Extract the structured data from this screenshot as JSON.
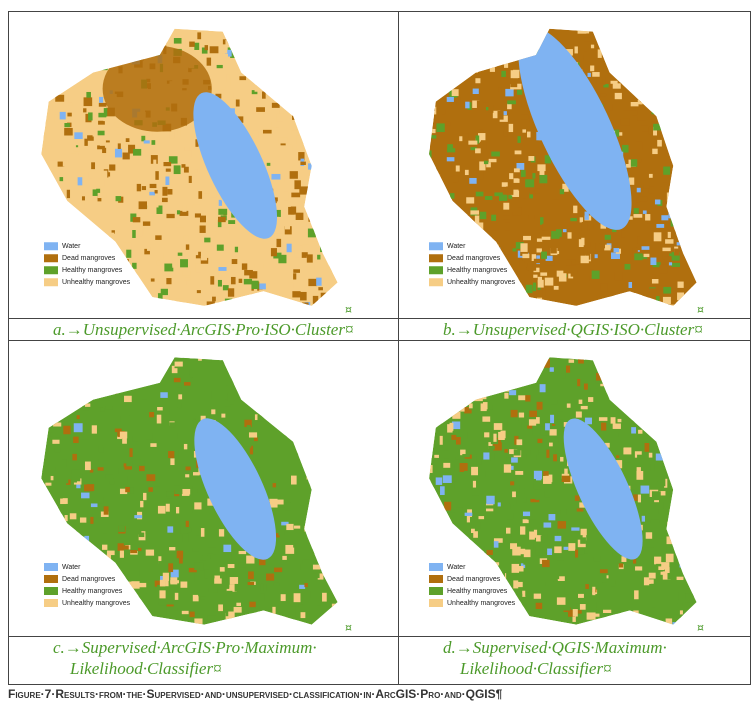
{
  "panels": [
    {
      "caption": [
        "a.→Unsupervised·ArcGIS·Pro·ISO·Cluster¤"
      ],
      "legend": [
        "Water",
        "Dead mangroves",
        "Healthy mangroves",
        "Unhealthy mangroves"
      ],
      "cell_mark": "¤"
    },
    {
      "caption": [
        "b.→Unsupervised·QGIS·ISO·Cluster¤"
      ],
      "legend": [
        "Water",
        "Dead mangroves",
        "Healthy mangroves",
        "Unhealthy mangroves"
      ],
      "cell_mark": "¤"
    },
    {
      "caption": [
        "c.→Supervised·ArcGIS·Pro·Maximum·",
        "Likelihood·Classifier¤"
      ],
      "legend": [
        "Water",
        "Dead mangroves",
        "Healthy mangroves",
        "Unhealthy mangroves"
      ],
      "cell_mark": "¤"
    },
    {
      "caption": [
        "d.→Supervised·QGIS·Maximum·",
        "Likelihood·Classifier¤"
      ],
      "legend": [
        "Water",
        "Dead mangroves",
        "Healthy mangroves",
        "Unhealthy mangroves"
      ],
      "cell_mark": "¤"
    }
  ],
  "figure_caption": "Figure·7·Results·from·the·Supervised·and·unsupervised·classification·in·ArcGIS·Pro·and·QGIS¶"
}
